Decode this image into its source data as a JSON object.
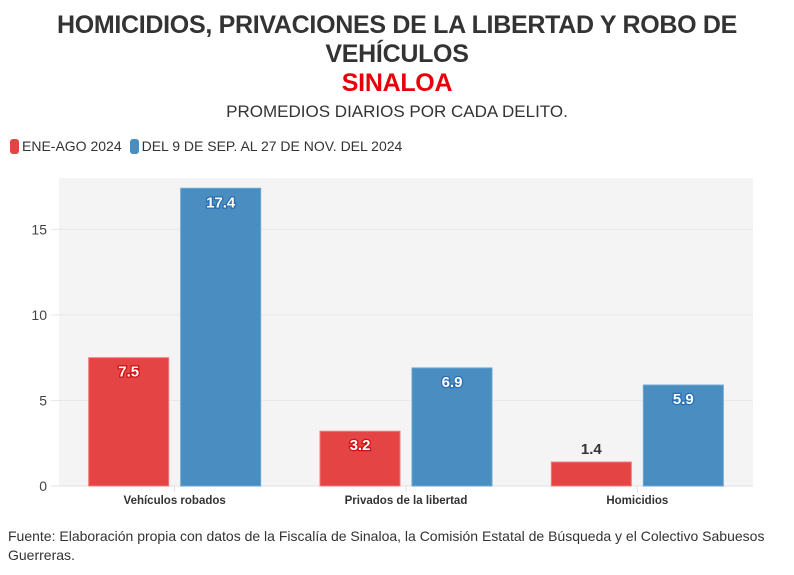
{
  "header": {
    "title_line1": "HOMICIDIOS, PRIVACIONES DE LA LIBERTAD Y ROBO DE",
    "title_line2": "VEHÍCULOS",
    "title_line3": "SINALOA",
    "subtitle": "PROMEDIOS DIARIOS POR CADA DELITO."
  },
  "legend": [
    {
      "label": "ENE-AGO 2024",
      "color": "#e54444"
    },
    {
      "label": "DEL 9 DE SEP. AL 27 DE NOV. DEL 2024",
      "color": "#4a8dc0"
    }
  ],
  "footer": {
    "source": "Fuente: Elaboración propia con datos de la Fiscalía de Sinaloa, la Comisión Estatal de Búsqueda y el Colectivo Sabuesos Guerreras."
  },
  "chart_data": {
    "type": "bar",
    "title": "HOMICIDIOS, PRIVACIONES DE LA LIBERTAD Y ROBO DE VEHÍCULOS — SINALOA",
    "subtitle": "PROMEDIOS DIARIOS POR CADA DELITO.",
    "categories": [
      "Vehículos robados",
      "Privados de la libertad",
      "Homicidios"
    ],
    "series": [
      {
        "name": "ENE-AGO 2024",
        "color": "#e54444",
        "values": [
          7.5,
          3.2,
          1.4
        ]
      },
      {
        "name": "DEL 9 DE SEP. AL 27 DE NOV. DEL 2024",
        "color": "#4a8dc0",
        "values": [
          17.4,
          6.9,
          5.9
        ]
      }
    ],
    "xlabel": "",
    "ylabel": "",
    "ylim": [
      0,
      18
    ],
    "yticks": [
      0,
      5,
      10,
      15
    ],
    "grid": true,
    "legend_position": "top-left",
    "plot_background": "#f4f4f4"
  }
}
